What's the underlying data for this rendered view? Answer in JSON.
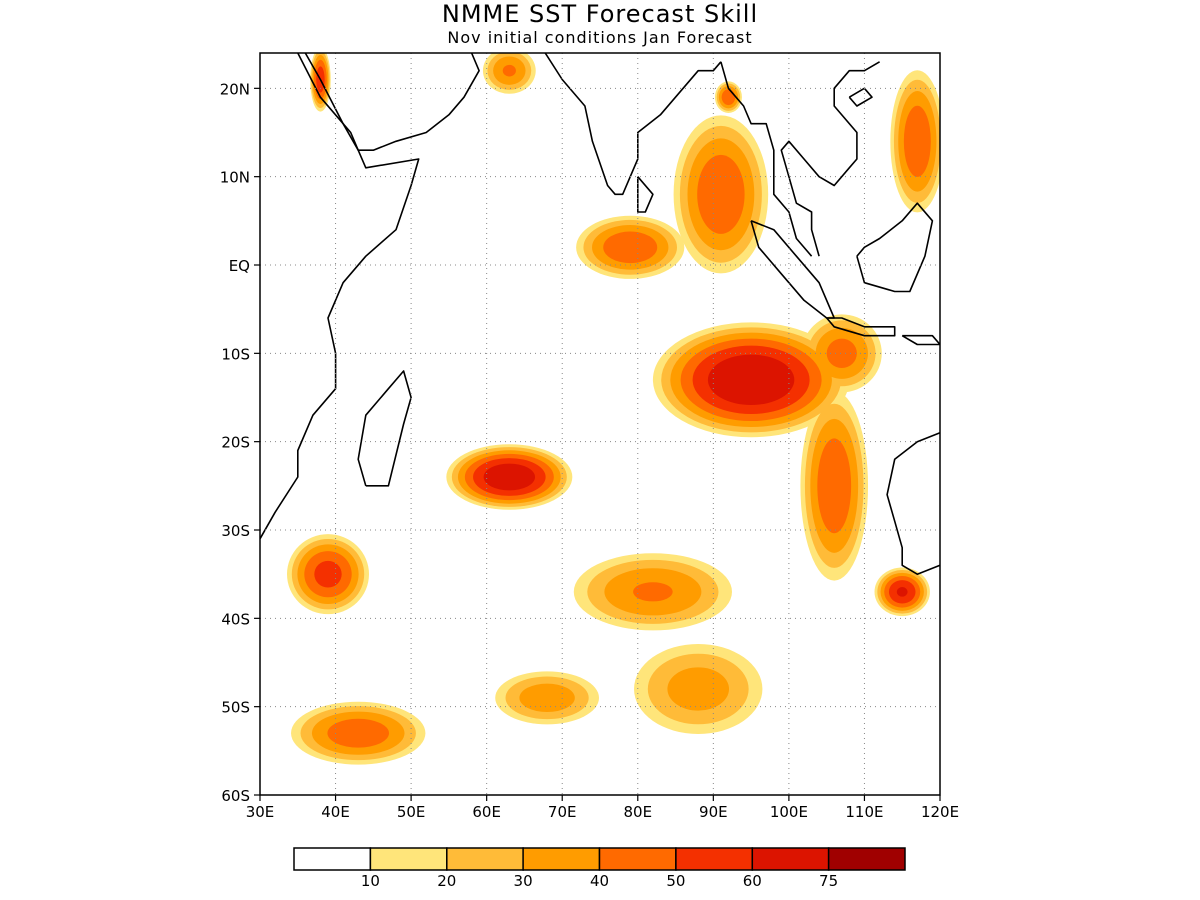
{
  "header": {
    "title": "NMME SST Forecast Skill",
    "subtitle": "Nov initial conditions  Jan Forecast"
  },
  "map": {
    "lon_range": [
      30,
      120
    ],
    "lat_range": [
      -60,
      24
    ],
    "x_ticks": [
      {
        "lon": 30,
        "label": "30E"
      },
      {
        "lon": 40,
        "label": "40E"
      },
      {
        "lon": 50,
        "label": "50E"
      },
      {
        "lon": 60,
        "label": "60E"
      },
      {
        "lon": 70,
        "label": "70E"
      },
      {
        "lon": 80,
        "label": "80E"
      },
      {
        "lon": 90,
        "label": "90E"
      },
      {
        "lon": 100,
        "label": "100E"
      },
      {
        "lon": 110,
        "label": "110E"
      },
      {
        "lon": 120,
        "label": "120E"
      }
    ],
    "y_ticks": [
      {
        "lat": 20,
        "label": "20N"
      },
      {
        "lat": 10,
        "label": "10N"
      },
      {
        "lat": 0,
        "label": "EQ"
      },
      {
        "lat": -10,
        "label": "10S"
      },
      {
        "lat": -20,
        "label": "20S"
      },
      {
        "lat": -30,
        "label": "30S"
      },
      {
        "lat": -40,
        "label": "40S"
      },
      {
        "lat": -50,
        "label": "50S"
      },
      {
        "lat": -60,
        "label": "60S"
      }
    ],
    "grid": true,
    "levels": [
      {
        "min": 10,
        "color": "#ffe57a"
      },
      {
        "min": 20,
        "color": "#ffbb38"
      },
      {
        "min": 30,
        "color": "#ff9c00"
      },
      {
        "min": 40,
        "color": "#ff6a00"
      },
      {
        "min": 50,
        "color": "#f43000"
      },
      {
        "min": 60,
        "color": "#dc1400"
      }
    ],
    "skill_regions": [
      {
        "name": "indian-ocean-east",
        "lon": 95,
        "lat": -13,
        "rx": 14,
        "ry": 7,
        "peak": 72
      },
      {
        "name": "java-coast",
        "lon": 107,
        "lat": -10,
        "rx": 6,
        "ry": 5,
        "peak": 45
      },
      {
        "name": "australia-west",
        "lon": 106,
        "lat": -25,
        "rx": 5,
        "ry": 12,
        "peak": 50
      },
      {
        "name": "australia-southwest",
        "lon": 115,
        "lat": -37,
        "rx": 4,
        "ry": 3,
        "peak": 62
      },
      {
        "name": "bay-of-bengal",
        "lon": 91,
        "lat": 8,
        "rx": 7,
        "ry": 10,
        "peak": 50
      },
      {
        "name": "bay-of-bengal-north",
        "lon": 92,
        "lat": 19,
        "rx": 2,
        "ry": 2,
        "peak": 50
      },
      {
        "name": "equatorial-central",
        "lon": 79,
        "lat": 2,
        "rx": 8,
        "ry": 4,
        "peak": 50
      },
      {
        "name": "arabian-sea-north",
        "lon": 63,
        "lat": 22,
        "rx": 4,
        "ry": 3,
        "peak": 42
      },
      {
        "name": "red-sea",
        "lon": 38,
        "lat": 21,
        "rx": 1.5,
        "ry": 4,
        "peak": 58
      },
      {
        "name": "mascarene",
        "lon": 63,
        "lat": -24,
        "rx": 9,
        "ry": 4,
        "peak": 70
      },
      {
        "name": "south-central-band",
        "lon": 82,
        "lat": -37,
        "rx": 12,
        "ry": 5,
        "peak": 42
      },
      {
        "name": "agulhas",
        "lon": 39,
        "lat": -35,
        "rx": 6,
        "ry": 5,
        "peak": 55
      },
      {
        "name": "southern-band-west",
        "lon": 43,
        "lat": -53,
        "rx": 10,
        "ry": 4,
        "peak": 48
      },
      {
        "name": "southern-band-central",
        "lon": 68,
        "lat": -49,
        "rx": 8,
        "ry": 3.5,
        "peak": 38
      },
      {
        "name": "southern-band-east",
        "lon": 88,
        "lat": -48,
        "rx": 10,
        "ry": 6,
        "peak": 36
      },
      {
        "name": "south-china-sea",
        "lon": 117,
        "lat": 14,
        "rx": 4,
        "ry": 9,
        "peak": 50
      }
    ],
    "coastlines": [
      {
        "name": "africa-coastline",
        "pts": [
          [
            30,
            -31
          ],
          [
            32,
            -28
          ],
          [
            35,
            -24
          ],
          [
            35,
            -21
          ],
          [
            37,
            -17
          ],
          [
            40,
            -14
          ],
          [
            40,
            -10
          ],
          [
            39,
            -6
          ],
          [
            41,
            -2
          ],
          [
            44,
            1
          ],
          [
            48,
            4
          ],
          [
            50,
            9
          ],
          [
            51,
            12
          ],
          [
            44,
            11
          ],
          [
            43,
            13
          ],
          [
            41,
            16
          ],
          [
            38,
            21
          ],
          [
            36,
            24
          ]
        ]
      },
      {
        "name": "arabia-coastline",
        "pts": [
          [
            35,
            24
          ],
          [
            38,
            19
          ],
          [
            42,
            15
          ],
          [
            43,
            13
          ],
          [
            45,
            13
          ],
          [
            48,
            14
          ],
          [
            52,
            15
          ],
          [
            55,
            17
          ],
          [
            57,
            19
          ],
          [
            59,
            22
          ],
          [
            58,
            24
          ],
          [
            56,
            25
          ]
        ]
      },
      {
        "name": "india-coastline",
        "pts": [
          [
            67,
            25
          ],
          [
            70,
            21
          ],
          [
            73,
            18
          ],
          [
            74,
            14
          ],
          [
            76,
            9
          ],
          [
            77,
            8
          ],
          [
            78,
            8
          ],
          [
            80,
            12
          ],
          [
            80,
            15
          ],
          [
            83,
            17
          ],
          [
            86,
            20
          ],
          [
            88,
            22
          ],
          [
            90,
            22
          ],
          [
            91,
            23
          ]
        ]
      },
      {
        "name": "myanmar-coastline",
        "pts": [
          [
            91,
            23
          ],
          [
            92,
            20
          ],
          [
            94,
            18
          ],
          [
            95,
            16
          ],
          [
            97,
            16
          ],
          [
            98,
            13
          ],
          [
            98,
            10
          ],
          [
            98,
            8
          ],
          [
            100,
            6
          ],
          [
            101,
            3
          ],
          [
            103,
            1
          ]
        ]
      },
      {
        "name": "malaya-east-coastline",
        "pts": [
          [
            104,
            1
          ],
          [
            103,
            4
          ],
          [
            103,
            6
          ],
          [
            101,
            7
          ],
          [
            100,
            10
          ],
          [
            99,
            13
          ],
          [
            100,
            14
          ],
          [
            102,
            12
          ],
          [
            104,
            10
          ],
          [
            106,
            9
          ],
          [
            108,
            11
          ],
          [
            109,
            12
          ],
          [
            109,
            15
          ],
          [
            106,
            18
          ],
          [
            106,
            20
          ],
          [
            108,
            22
          ],
          [
            110,
            22
          ],
          [
            112,
            23
          ]
        ]
      },
      {
        "name": "sri-lanka",
        "pts": [
          [
            80,
            10
          ],
          [
            82,
            8
          ],
          [
            81,
            6
          ],
          [
            80,
            6
          ],
          [
            80,
            10
          ]
        ]
      },
      {
        "name": "madagascar",
        "pts": [
          [
            44,
            -25
          ],
          [
            47,
            -25
          ],
          [
            49,
            -18
          ],
          [
            50,
            -15
          ],
          [
            49,
            -12
          ],
          [
            47,
            -14
          ],
          [
            44,
            -17
          ],
          [
            43,
            -22
          ],
          [
            44,
            -25
          ]
        ]
      },
      {
        "name": "sumatra",
        "pts": [
          [
            95,
            5
          ],
          [
            98,
            4
          ],
          [
            101,
            1
          ],
          [
            104,
            -2
          ],
          [
            106,
            -6
          ],
          [
            105,
            -6
          ],
          [
            102,
            -4
          ],
          [
            99,
            -1
          ],
          [
            96,
            2
          ],
          [
            95,
            5
          ]
        ]
      },
      {
        "name": "java",
        "pts": [
          [
            105,
            -6
          ],
          [
            107,
            -6
          ],
          [
            110,
            -7
          ],
          [
            114,
            -7
          ],
          [
            114,
            -8
          ],
          [
            110,
            -8
          ],
          [
            106,
            -7
          ],
          [
            105,
            -6
          ]
        ]
      },
      {
        "name": "lesser-sunda",
        "pts": [
          [
            115,
            -8
          ],
          [
            119,
            -8
          ],
          [
            120,
            -9
          ],
          [
            117,
            -9
          ],
          [
            115,
            -8
          ]
        ]
      },
      {
        "name": "borneo",
        "pts": [
          [
            109,
            1
          ],
          [
            110,
            -2
          ],
          [
            114,
            -3
          ],
          [
            116,
            -3
          ],
          [
            118,
            1
          ],
          [
            119,
            5
          ],
          [
            117,
            7
          ],
          [
            115,
            5
          ],
          [
            112,
            3
          ],
          [
            110,
            2
          ],
          [
            109,
            1
          ]
        ]
      },
      {
        "name": "australia-west-coastline",
        "pts": [
          [
            120,
            -19
          ],
          [
            117,
            -20
          ],
          [
            114,
            -22
          ],
          [
            113,
            -26
          ],
          [
            114,
            -29
          ],
          [
            115,
            -32
          ],
          [
            115,
            -34
          ],
          [
            117,
            -35
          ],
          [
            120,
            -34
          ]
        ]
      },
      {
        "name": "hainan",
        "pts": [
          [
            108,
            19
          ],
          [
            110,
            20
          ],
          [
            111,
            19
          ],
          [
            109,
            18
          ],
          [
            108,
            19
          ]
        ]
      }
    ]
  },
  "colorbar": {
    "colors": [
      "#ffffff",
      "#ffe57a",
      "#ffbb38",
      "#ff9c00",
      "#ff6a00",
      "#f43000",
      "#dc1400",
      "#a00000"
    ],
    "labels": [
      "10",
      "20",
      "30",
      "40",
      "50",
      "60",
      "75"
    ]
  }
}
